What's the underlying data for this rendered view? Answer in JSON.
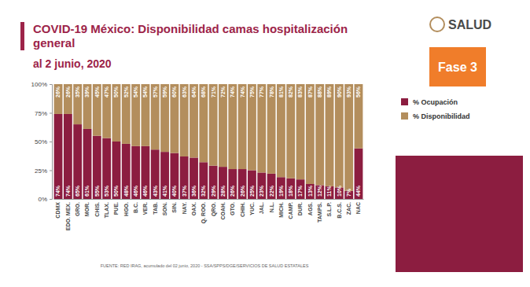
{
  "chart_data": {
    "type": "bar",
    "title": "COVID-19 México: Disponibilidad camas hospitalización general",
    "subtitle": "al 2 junio, 2020",
    "source": "FUENTE: RED IRAG, acumulado del 02 junio, 2020 - SSA/SPPS/DGE/SERVICIOS DE SALUD ESTATALES",
    "annotations": [
      "Fase 3",
      "SALUD"
    ],
    "categories": [
      "CDMX",
      "EDO. MEX.",
      "GRO.",
      "MOR.",
      "CHIS.",
      "TLAX.",
      "PUE.",
      "HGO.",
      "B.C.",
      "VER.",
      "TAB.",
      "SON.",
      "SIN.",
      "NAY.",
      "OAX.",
      "Q. ROO.",
      "QRO.",
      "COAH.",
      "GTO.",
      "CHIH.",
      "YUC.",
      "JAL.",
      "N.L.",
      "MICH.",
      "CAMP.",
      "DUR.",
      "AGS.",
      "TAMPS.",
      "S.L.P.",
      "B.C.S.",
      "ZAC.",
      "NAC"
    ],
    "series": [
      {
        "name": "% Ocupación",
        "color": "#8c1d40",
        "values": [
          74,
          74,
          65,
          61,
          55,
          53,
          50,
          48,
          46,
          46,
          43,
          41,
          40,
          37,
          36,
          32,
          29,
          28,
          26,
          26,
          25,
          23,
          22,
          19,
          18,
          17,
          13,
          12,
          11,
          10,
          7,
          44
        ],
        "value_labels": [
          "74%",
          "74%",
          "65%",
          "61%",
          "55%",
          "53%",
          "50%",
          "48%",
          "46%",
          "46%",
          "43%",
          "41%",
          "40%",
          "37%",
          "36%",
          "32%",
          "29%",
          "28%",
          "26%",
          "26%",
          "25%",
          "23%",
          "22%",
          "19%",
          "18%",
          "17%",
          "13%",
          "12%",
          "11%",
          "10%",
          "7%",
          "44%"
        ]
      },
      {
        "name": "% Disponibilidad",
        "color": "#b38e5d",
        "values": [
          26,
          26,
          35,
          39,
          45,
          47,
          50,
          52,
          54,
          54,
          57,
          59,
          60,
          63,
          64,
          68,
          71,
          72,
          74,
          74,
          75,
          77,
          78,
          81,
          82,
          83,
          87,
          88,
          89,
          90,
          93,
          56
        ],
        "value_labels": [
          "26%",
          "26%",
          "35%",
          "39%",
          "45%",
          "47%",
          "50%",
          "52%",
          "54%",
          "54%",
          "57%",
          "59%",
          "60%",
          "63%",
          "64%",
          "68%",
          "71%",
          "72%",
          "74%",
          "74%",
          "75%",
          "77%",
          "78%",
          "81%",
          "82%",
          "83%",
          "87%",
          "88%",
          "89%",
          "90%",
          "93%",
          "56%"
        ]
      }
    ],
    "stacked": true,
    "data_labels": true,
    "grid": false,
    "legend": "right",
    "ylim": [
      0,
      100
    ],
    "yticks": [
      {
        "value": 0,
        "label": "0%"
      },
      {
        "value": 25,
        "label": "25%"
      },
      {
        "value": 50,
        "label": "50%"
      },
      {
        "value": 75,
        "label": "75%"
      },
      {
        "value": 100,
        "label": "100%"
      }
    ]
  }
}
